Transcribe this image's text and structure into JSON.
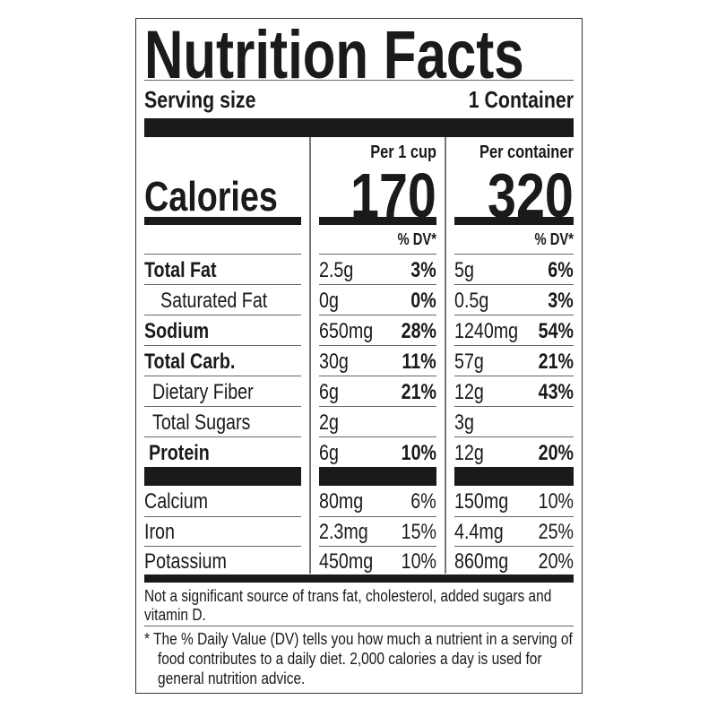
{
  "title": "Nutrition Facts",
  "serving": {
    "label": "Serving size",
    "value": "1 Container"
  },
  "columns": [
    {
      "header": "Per 1 cup",
      "calories": "170",
      "dv_header": "% DV*"
    },
    {
      "header": "Per container",
      "calories": "320",
      "dv_header": "% DV*"
    }
  ],
  "calories_label": "Calories",
  "nutrients": [
    {
      "label": "Total Fat",
      "bold": true,
      "indent": 0,
      "values": [
        [
          "2.5g",
          "3%"
        ],
        [
          "5g",
          "6%"
        ]
      ]
    },
    {
      "label": "Saturated Fat",
      "bold": false,
      "indent": 2,
      "values": [
        [
          "0g",
          "0%"
        ],
        [
          "0.5g",
          "3%"
        ]
      ]
    },
    {
      "label": "Sodium",
      "bold": true,
      "indent": 0,
      "values": [
        [
          "650mg",
          "28%"
        ],
        [
          "1240mg",
          "54%"
        ]
      ]
    },
    {
      "label": "Total Carb.",
      "bold": true,
      "indent": 0,
      "values": [
        [
          "30g",
          "11%"
        ],
        [
          "57g",
          "21%"
        ]
      ]
    },
    {
      "label": "Dietary Fiber",
      "bold": false,
      "indent": 1,
      "values": [
        [
          "6g",
          "21%"
        ],
        [
          "12g",
          "43%"
        ]
      ]
    },
    {
      "label": "Total Sugars",
      "bold": false,
      "indent": 1,
      "values": [
        [
          "2g",
          ""
        ],
        [
          "3g",
          ""
        ]
      ]
    },
    {
      "label": "Protein",
      "bold": true,
      "indent": 0.5,
      "values": [
        [
          "6g",
          "10%"
        ],
        [
          "12g",
          "20%"
        ]
      ]
    }
  ],
  "minerals": [
    {
      "label": "Calcium",
      "values": [
        [
          "80mg",
          "6%"
        ],
        [
          "150mg",
          "10%"
        ]
      ]
    },
    {
      "label": "Iron",
      "values": [
        [
          "2.3mg",
          "15%"
        ],
        [
          "4.4mg",
          "25%"
        ]
      ]
    },
    {
      "label": "Potassium",
      "values": [
        [
          "450mg",
          "10%"
        ],
        [
          "860mg",
          "20%"
        ]
      ]
    }
  ],
  "footnotes": {
    "not_significant": "Not a significant source of trans fat, cholesterol, added sugars and",
    "not_significant_2": "vitamin D.",
    "dv_line1": "* The % Daily Value (DV) tells you how much a nutrient in a serving of",
    "dv_line2": "food contributes to a daily diet. 2,000 calories a day is used for",
    "dv_line3": "general nutrition advice."
  }
}
